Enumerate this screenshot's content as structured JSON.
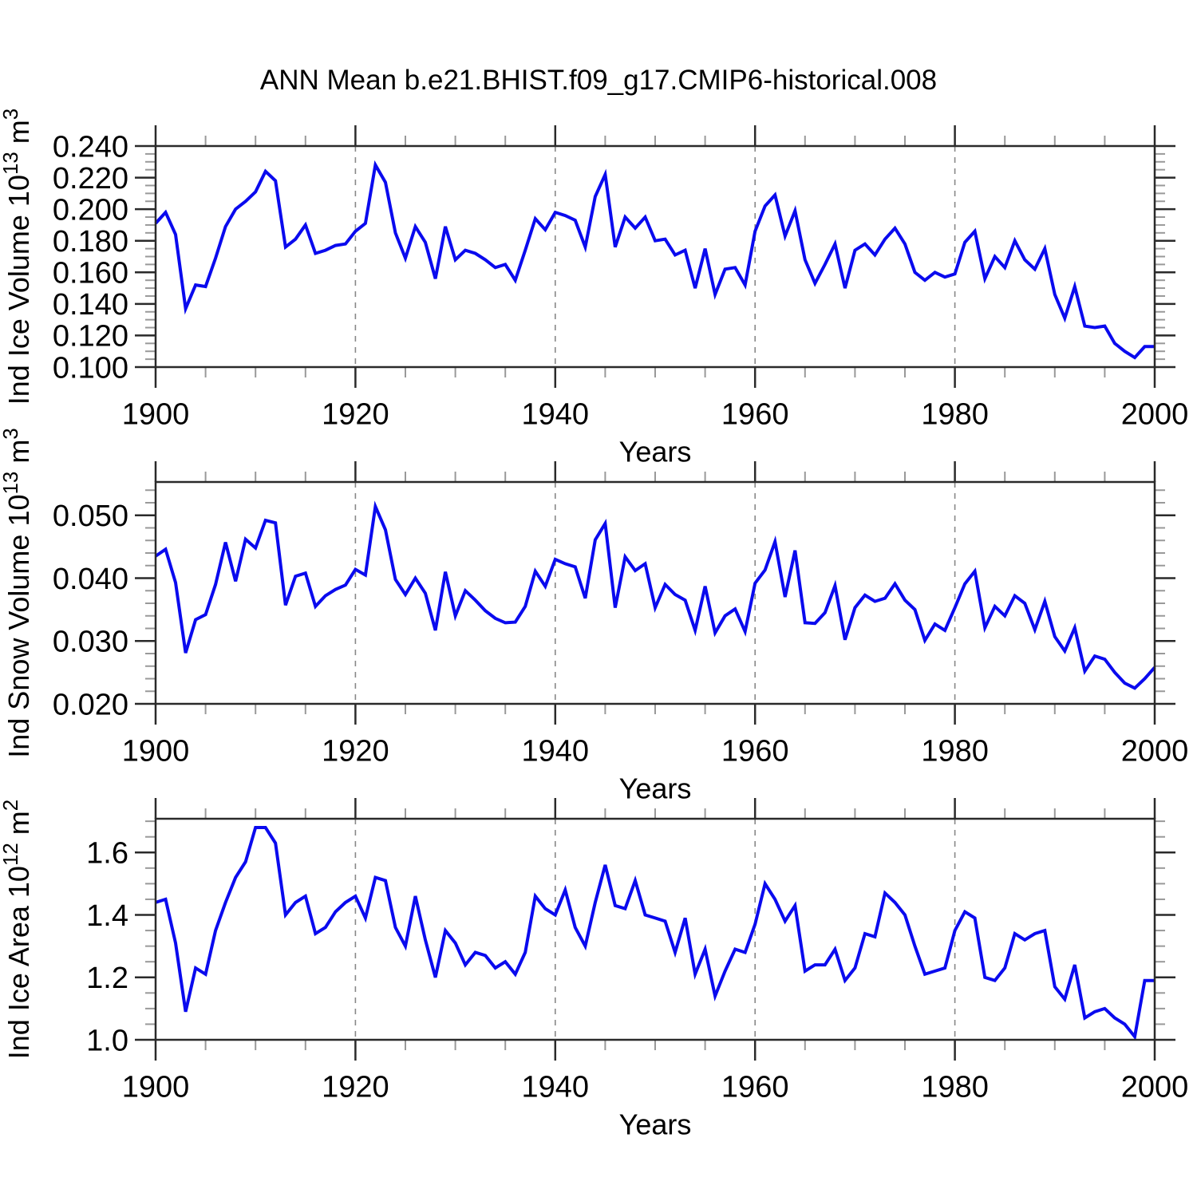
{
  "title": "ANN Mean b.e21.BHIST.f09_g17.CMIP6-historical.008",
  "line_color": "#0a0aee",
  "frame_color": "#2a2a2a",
  "minor_tick_color": "#999999",
  "gridline_color": "#888888",
  "x_axis": {
    "label": "Years",
    "min": 1900,
    "max": 2000,
    "tick_major": 20,
    "tick_minor": 5,
    "gridlines": [
      1920,
      1940,
      1960,
      1980
    ],
    "tick_labels": [
      "1900",
      "1920",
      "1940",
      "1960",
      "1980",
      "2000"
    ]
  },
  "chart_data": [
    {
      "type": "line",
      "ylabel": "Ind Ice Volume 10¹³ m³",
      "ylabel_parts": [
        {
          "t": "Ind Ice Volume 10"
        },
        {
          "t": "13",
          "sup": true
        },
        {
          "t": " m"
        },
        {
          "t": "3",
          "sup": true
        }
      ],
      "xlabel": "Years",
      "x_start": 1900,
      "x_step": 1,
      "ylim": [
        0.1,
        0.24
      ],
      "ytick_major": 0.02,
      "ytick_minor": 0.005,
      "decimals": 3,
      "ytick_labels": [
        "0.100",
        "0.120",
        "0.140",
        "0.160",
        "0.180",
        "0.200",
        "0.220",
        "0.240"
      ],
      "values": [
        0.191,
        0.198,
        0.184,
        0.137,
        0.152,
        0.151,
        0.169,
        0.189,
        0.2,
        0.205,
        0.211,
        0.224,
        0.218,
        0.176,
        0.181,
        0.19,
        0.172,
        0.174,
        0.177,
        0.178,
        0.186,
        0.191,
        0.228,
        0.217,
        0.185,
        0.169,
        0.189,
        0.179,
        0.156,
        0.189,
        0.168,
        0.174,
        0.172,
        0.168,
        0.163,
        0.165,
        0.155,
        0.174,
        0.194,
        0.187,
        0.198,
        0.196,
        0.193,
        0.176,
        0.208,
        0.222,
        0.176,
        0.195,
        0.188,
        0.195,
        0.18,
        0.181,
        0.171,
        0.174,
        0.15,
        0.175,
        0.146,
        0.162,
        0.163,
        0.152,
        0.186,
        0.202,
        0.209,
        0.183,
        0.199,
        0.168,
        0.153,
        0.165,
        0.178,
        0.15,
        0.174,
        0.178,
        0.171,
        0.181,
        0.188,
        0.178,
        0.16,
        0.155,
        0.16,
        0.157,
        0.159,
        0.179,
        0.186,
        0.156,
        0.17,
        0.163,
        0.18,
        0.168,
        0.162,
        0.175,
        0.146,
        0.131,
        0.151,
        0.126,
        0.125,
        0.126,
        0.115,
        0.11,
        0.106,
        0.113,
        0.113
      ]
    },
    {
      "type": "line",
      "ylabel": "Ind Snow Volume 10¹³ m³",
      "ylabel_parts": [
        {
          "t": "Ind Snow Volume 10"
        },
        {
          "t": "13",
          "sup": true
        },
        {
          "t": " m"
        },
        {
          "t": "3",
          "sup": true
        }
      ],
      "xlabel": "Years",
      "x_start": 1900,
      "x_step": 1,
      "ylim": [
        0.02,
        0.0553
      ],
      "ytick_major": 0.01,
      "ytick_minor": 0.002,
      "decimals": 3,
      "ytick_labels": [
        "0.020",
        "0.030",
        "0.040",
        "0.050"
      ],
      "values": [
        0.0435,
        0.0446,
        0.0393,
        0.0281,
        0.0334,
        0.0342,
        0.039,
        0.0457,
        0.0395,
        0.0462,
        0.0448,
        0.0492,
        0.0488,
        0.0357,
        0.0403,
        0.0408,
        0.0355,
        0.0372,
        0.0382,
        0.0389,
        0.0414,
        0.0405,
        0.0514,
        0.0477,
        0.0398,
        0.0374,
        0.04,
        0.0376,
        0.0317,
        0.041,
        0.034,
        0.038,
        0.0365,
        0.0348,
        0.0336,
        0.0329,
        0.033,
        0.0355,
        0.0411,
        0.0387,
        0.043,
        0.0423,
        0.0418,
        0.0368,
        0.0461,
        0.0487,
        0.0353,
        0.0434,
        0.0412,
        0.0423,
        0.0353,
        0.039,
        0.0374,
        0.0365,
        0.0317,
        0.0387,
        0.0313,
        0.034,
        0.0351,
        0.0315,
        0.0392,
        0.0413,
        0.0458,
        0.037,
        0.0444,
        0.0329,
        0.0328,
        0.0345,
        0.0388,
        0.0302,
        0.0353,
        0.0373,
        0.0363,
        0.0368,
        0.0391,
        0.0365,
        0.035,
        0.0301,
        0.0327,
        0.0317,
        0.0353,
        0.0391,
        0.0411,
        0.0321,
        0.0355,
        0.034,
        0.0372,
        0.036,
        0.0318,
        0.0363,
        0.0307,
        0.0284,
        0.0321,
        0.0252,
        0.0276,
        0.0271,
        0.025,
        0.0233,
        0.0225,
        0.024,
        0.0258
      ]
    },
    {
      "type": "line",
      "ylabel": "Ind Ice Area 10¹² m²",
      "ylabel_parts": [
        {
          "t": "Ind Ice Area 10"
        },
        {
          "t": "12",
          "sup": true
        },
        {
          "t": " m"
        },
        {
          "t": "2",
          "sup": true
        }
      ],
      "xlabel": "Years",
      "x_start": 1900,
      "x_step": 1,
      "ylim": [
        1.0,
        1.708
      ],
      "ytick_major": 0.2,
      "ytick_minor": 0.05,
      "decimals": 1,
      "ytick_labels": [
        "1.0",
        "1.2",
        "1.4",
        "1.6"
      ],
      "values": [
        1.44,
        1.45,
        1.31,
        1.09,
        1.23,
        1.21,
        1.35,
        1.44,
        1.52,
        1.57,
        1.68,
        1.68,
        1.63,
        1.4,
        1.44,
        1.46,
        1.34,
        1.36,
        1.41,
        1.44,
        1.46,
        1.39,
        1.52,
        1.51,
        1.36,
        1.3,
        1.46,
        1.32,
        1.2,
        1.35,
        1.31,
        1.24,
        1.28,
        1.27,
        1.23,
        1.25,
        1.21,
        1.28,
        1.46,
        1.42,
        1.4,
        1.48,
        1.36,
        1.3,
        1.44,
        1.56,
        1.43,
        1.42,
        1.51,
        1.4,
        1.39,
        1.38,
        1.28,
        1.39,
        1.21,
        1.29,
        1.14,
        1.22,
        1.29,
        1.28,
        1.37,
        1.5,
        1.45,
        1.38,
        1.43,
        1.22,
        1.24,
        1.24,
        1.29,
        1.19,
        1.23,
        1.34,
        1.33,
        1.47,
        1.44,
        1.4,
        1.3,
        1.21,
        1.22,
        1.23,
        1.35,
        1.41,
        1.39,
        1.2,
        1.19,
        1.23,
        1.34,
        1.32,
        1.34,
        1.35,
        1.17,
        1.13,
        1.24,
        1.07,
        1.09,
        1.1,
        1.07,
        1.05,
        1.01,
        1.19,
        1.19
      ]
    }
  ]
}
